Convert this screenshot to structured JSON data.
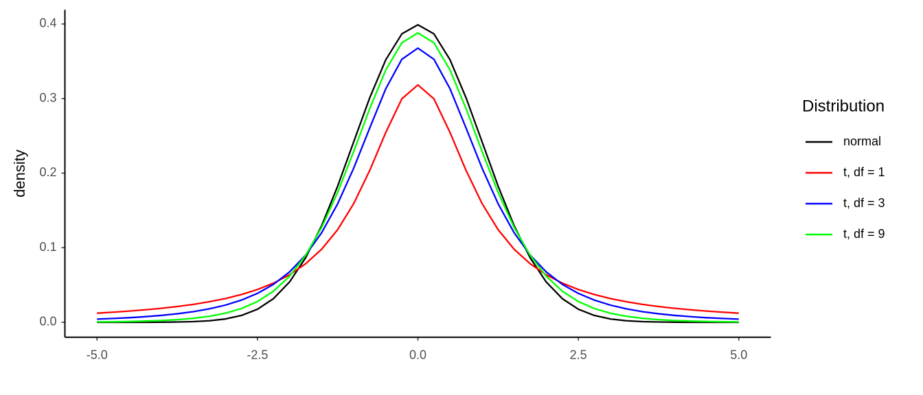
{
  "chart_data": {
    "type": "line",
    "y_label": "density",
    "legend_title": "Distribution",
    "legend_position": "right",
    "grid": false,
    "x": [
      -5,
      -4.75,
      -4.5,
      -4.25,
      -4,
      -3.75,
      -3.5,
      -3.25,
      -3,
      -2.75,
      -2.5,
      -2.25,
      -2,
      -1.75,
      -1.5,
      -1.25,
      -1,
      -0.75,
      -0.5,
      -0.25,
      0,
      0.25,
      0.5,
      0.75,
      1,
      1.25,
      1.5,
      1.75,
      2,
      2.25,
      2.5,
      2.75,
      3,
      3.25,
      3.5,
      3.75,
      4,
      4.25,
      4.5,
      4.75,
      5
    ],
    "series": [
      {
        "name": "normal",
        "color": "#000000",
        "values": [
          0.0,
          0.0,
          0.0,
          0.0,
          0.0001,
          0.0004,
          0.0009,
          0.002,
          0.0044,
          0.0091,
          0.0175,
          0.0317,
          0.054,
          0.0863,
          0.1295,
          0.1826,
          0.242,
          0.3011,
          0.3521,
          0.3867,
          0.3989,
          0.3867,
          0.3521,
          0.3011,
          0.242,
          0.1826,
          0.1295,
          0.0863,
          0.054,
          0.0317,
          0.0175,
          0.0091,
          0.0044,
          0.002,
          0.0009,
          0.0004,
          0.0001,
          0.0,
          0.0,
          0.0,
          0.0
        ]
      },
      {
        "name": "t, df = 1",
        "color": "#ff0000",
        "values": [
          0.0122,
          0.0135,
          0.015,
          0.0167,
          0.0187,
          0.0211,
          0.024,
          0.0275,
          0.0318,
          0.0372,
          0.0439,
          0.0525,
          0.0637,
          0.0784,
          0.0979,
          0.1242,
          0.1592,
          0.2037,
          0.2546,
          0.2996,
          0.3183,
          0.2996,
          0.2546,
          0.2037,
          0.1592,
          0.1242,
          0.0979,
          0.0784,
          0.0637,
          0.0525,
          0.0439,
          0.0372,
          0.0318,
          0.0275,
          0.024,
          0.0211,
          0.0187,
          0.0167,
          0.015,
          0.0135,
          0.0122
        ]
      },
      {
        "name": "t, df = 3",
        "color": "#0000ff",
        "values": [
          0.0042,
          0.0051,
          0.0061,
          0.0075,
          0.0092,
          0.0114,
          0.0142,
          0.018,
          0.023,
          0.0297,
          0.0387,
          0.0509,
          0.0675,
          0.09,
          0.12,
          0.1589,
          0.2067,
          0.2606,
          0.3132,
          0.3527,
          0.3676,
          0.3527,
          0.3132,
          0.2606,
          0.2067,
          0.1589,
          0.12,
          0.09,
          0.0675,
          0.0509,
          0.0387,
          0.0297,
          0.023,
          0.018,
          0.0142,
          0.0114,
          0.0092,
          0.0075,
          0.0061,
          0.0051,
          0.0042
        ]
      },
      {
        "name": "t, df = 9",
        "color": "#00ff00",
        "values": [
          0.0005,
          0.0007,
          0.0011,
          0.0016,
          0.0023,
          0.0035,
          0.0053,
          0.008,
          0.0121,
          0.0184,
          0.0278,
          0.0417,
          0.0617,
          0.0897,
          0.1271,
          0.1743,
          0.2291,
          0.2866,
          0.3384,
          0.3748,
          0.388,
          0.3748,
          0.3384,
          0.2866,
          0.2291,
          0.1743,
          0.1271,
          0.0897,
          0.0617,
          0.0417,
          0.0278,
          0.0184,
          0.0121,
          0.008,
          0.0053,
          0.0035,
          0.0023,
          0.0016,
          0.0011,
          0.0007,
          0.0005
        ]
      }
    ],
    "xlim": [
      -5.5,
      5.5
    ],
    "ylim": [
      -0.02,
      0.419
    ],
    "xticks": [
      {
        "value": -5,
        "label": "-5.0"
      },
      -2.5,
      {
        "value": 0,
        "label": "0.0"
      },
      2.5,
      {
        "value": 5,
        "label": "5.0"
      }
    ],
    "yticks": [
      {
        "value": 0,
        "label": "0.0"
      },
      0.1,
      0.2,
      0.3,
      0.4
    ]
  }
}
